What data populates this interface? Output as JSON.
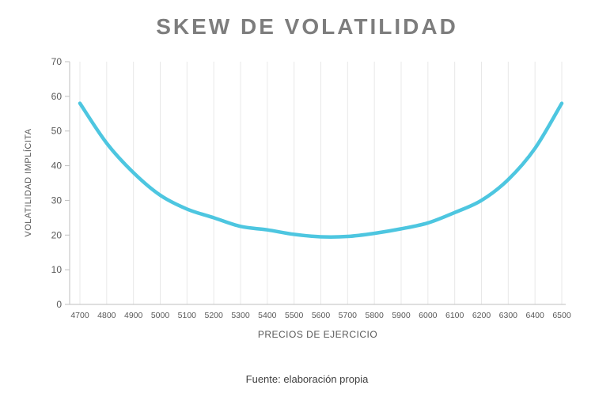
{
  "chart": {
    "caption": "Fuente: elaboración propia"
  },
  "chart_data": {
    "type": "line",
    "title": "SKEW DE VOLATILIDAD",
    "xlabel": "PRECIOS DE EJERCICIO",
    "ylabel": "VOLATILIDAD IMPLÍCITA",
    "x": [
      4700,
      4800,
      4900,
      5000,
      5100,
      5200,
      5300,
      5400,
      5500,
      5600,
      5700,
      5800,
      5900,
      6000,
      6100,
      6200,
      6300,
      6400,
      6500
    ],
    "values": [
      58,
      46.5,
      38,
      31.5,
      27.5,
      25,
      22.5,
      21.5,
      20.2,
      19.5,
      19.6,
      20.5,
      21.8,
      23.5,
      26.5,
      30,
      36,
      45,
      58
    ],
    "ylim": [
      0,
      70
    ],
    "yticks": [
      0,
      10,
      20,
      30,
      40,
      50,
      60,
      70
    ],
    "grid": "vertical",
    "legend": "none",
    "line_color": "#4dc6e0",
    "grid_color": "#e8e8e8",
    "axis_color": "#bfbfbf",
    "tick_text_color": "#595959"
  }
}
